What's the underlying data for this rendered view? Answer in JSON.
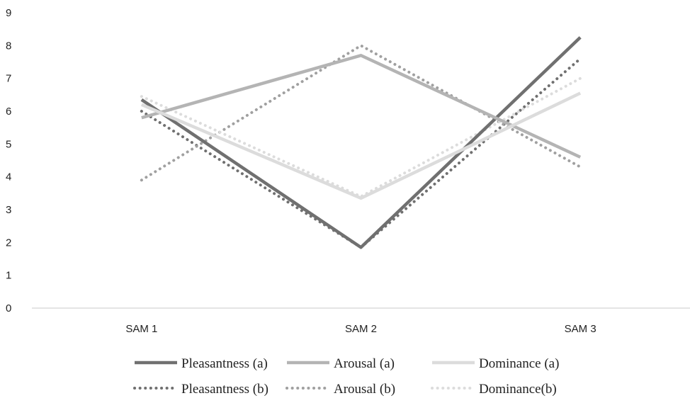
{
  "chart_data": {
    "type": "line",
    "categories": [
      "SAM 1",
      "SAM 2",
      "SAM 3"
    ],
    "ylim": [
      0,
      9
    ],
    "yticks": [
      "0",
      "1",
      "2",
      "3",
      "4",
      "5",
      "6",
      "7",
      "8",
      "9"
    ],
    "grid": false,
    "legend_position": "bottom",
    "series": [
      {
        "name": "Pleasantness (a)",
        "values": [
          6.35,
          1.85,
          8.25
        ],
        "color": "#707070",
        "style": "solid"
      },
      {
        "name": "Arousal (a)",
        "values": [
          5.8,
          7.7,
          4.6
        ],
        "color": "#b4b4b4",
        "style": "solid"
      },
      {
        "name": "Dominance (a)",
        "values": [
          6.2,
          3.35,
          6.55
        ],
        "color": "#dcdcdc",
        "style": "solid"
      },
      {
        "name": "Pleasantness (b)",
        "values": [
          6.0,
          1.85,
          7.6
        ],
        "color": "#707070",
        "style": "dotted"
      },
      {
        "name": "Arousal (b)",
        "values": [
          3.9,
          8.0,
          4.3
        ],
        "color": "#a0a0a0",
        "style": "dotted"
      },
      {
        "name": "Dominance(b)",
        "values": [
          6.45,
          3.4,
          7.0
        ],
        "color": "#dcdcdc",
        "style": "dotted"
      }
    ]
  }
}
